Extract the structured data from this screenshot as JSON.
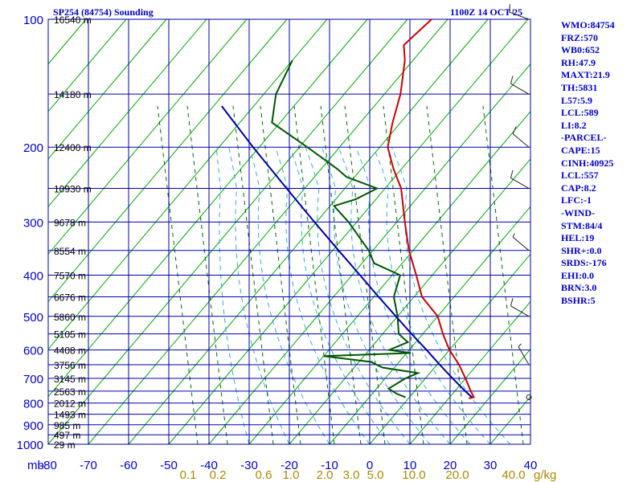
{
  "header": {
    "title": "SP254 (84754) Sounding",
    "time": "1100Z 14 OCT 25"
  },
  "stats": [
    "WMO:84754",
    "FRZ:570",
    "WB0:652",
    "RH:47.9",
    "MAXT:21.9",
    "TH:5831",
    "L57:5.9",
    "LCL:589",
    "LI:8.2",
    "-PARCEL-",
    "CAPE:15",
    "CINH:40925",
    "LCL:557",
    "CAP:8.2",
    "LFC:-1",
    "-WIND-",
    "STM:84/4",
    "HEL:19",
    "SHR+:0.0",
    "SRDS:-176",
    "EHI:0.0",
    "BRN:3.0",
    "BSHR:5"
  ],
  "colors": {
    "grid": "#0000aa",
    "axis_text": "#0000cc",
    "isotherm": "#00aa00",
    "mixing_ratio": "#006600",
    "moist_adiabat": "#33aadd",
    "temperature": "#cc0000",
    "dewpoint": "#005500",
    "parcel": "#0000aa",
    "wind": "#222222",
    "height_text": "#000000",
    "mixing_label": "#aa8800"
  },
  "chart_data": {
    "type": "line",
    "subtype": "skew-t log-p sounding",
    "y_axis": {
      "scale": "log",
      "unit_label": "mb",
      "range": [
        1000,
        100
      ],
      "ticks": [
        100,
        200,
        300,
        400,
        500,
        600,
        700,
        800,
        900,
        1000
      ]
    },
    "x_axis": {
      "range": [
        -80,
        40
      ],
      "ticks": [
        -80,
        -70,
        -60,
        -50,
        -40,
        -30,
        -20,
        -10,
        0,
        10,
        20,
        30,
        40
      ]
    },
    "mixing_ratio_labels": [
      "0.1",
      "0.2",
      "0.6",
      "1.0",
      "2.0",
      "3.0",
      "5.0",
      "10.0",
      "20.0",
      "40.0"
    ],
    "mixing_ratio_unit": "g/kg",
    "height_labels": [
      {
        "p": 100,
        "label": "16540 m"
      },
      {
        "p": 150,
        "label": "14180 m"
      },
      {
        "p": 200,
        "label": "12400 m"
      },
      {
        "p": 250,
        "label": "10930 m"
      },
      {
        "p": 300,
        "label": "9678 m"
      },
      {
        "p": 350,
        "label": "8554 m"
      },
      {
        "p": 400,
        "label": "7570 m"
      },
      {
        "p": 450,
        "label": "6676 m"
      },
      {
        "p": 500,
        "label": "5860 m"
      },
      {
        "p": 550,
        "label": "5105 m"
      },
      {
        "p": 600,
        "label": "4408 m"
      },
      {
        "p": 650,
        "label": "3756 m"
      },
      {
        "p": 700,
        "label": "3145 m"
      },
      {
        "p": 750,
        "label": "2563 m"
      },
      {
        "p": 800,
        "label": "2012 m"
      },
      {
        "p": 850,
        "label": "1493 m"
      },
      {
        "p": 900,
        "label": "985 m"
      },
      {
        "p": 950,
        "label": "497 m"
      },
      {
        "p": 1000,
        "label": "29 m"
      }
    ],
    "series": [
      {
        "name": "temperature",
        "points": [
          {
            "p": 100,
            "t": -74
          },
          {
            "p": 115,
            "t": -75.5
          },
          {
            "p": 125,
            "t": -72
          },
          {
            "p": 150,
            "t": -66
          },
          {
            "p": 175,
            "t": -62
          },
          {
            "p": 200,
            "t": -58
          },
          {
            "p": 225,
            "t": -52
          },
          {
            "p": 250,
            "t": -46
          },
          {
            "p": 300,
            "t": -38
          },
          {
            "p": 350,
            "t": -31
          },
          {
            "p": 400,
            "t": -24
          },
          {
            "p": 450,
            "t": -18
          },
          {
            "p": 500,
            "t": -10
          },
          {
            "p": 550,
            "t": -5
          },
          {
            "p": 600,
            "t": 0
          },
          {
            "p": 650,
            "t": 5.5
          },
          {
            "p": 700,
            "t": 10
          },
          {
            "p": 750,
            "t": 14
          },
          {
            "p": 775,
            "t": 16
          },
          {
            "p": 780,
            "t": 15
          }
        ]
      },
      {
        "name": "dewpoint",
        "points": [
          {
            "p": 125,
            "t": -100
          },
          {
            "p": 150,
            "t": -97
          },
          {
            "p": 175,
            "t": -92
          },
          {
            "p": 200,
            "t": -78
          },
          {
            "p": 225,
            "t": -66
          },
          {
            "p": 235,
            "t": -62
          },
          {
            "p": 250,
            "t": -52
          },
          {
            "p": 265,
            "t": -55
          },
          {
            "p": 275,
            "t": -59
          },
          {
            "p": 300,
            "t": -52
          },
          {
            "p": 350,
            "t": -41
          },
          {
            "p": 375,
            "t": -37
          },
          {
            "p": 400,
            "t": -28
          },
          {
            "p": 450,
            "t": -25
          },
          {
            "p": 500,
            "t": -20
          },
          {
            "p": 550,
            "t": -16
          },
          {
            "p": 575,
            "t": -12
          },
          {
            "p": 600,
            "t": -15
          },
          {
            "p": 610,
            "t": -9
          },
          {
            "p": 620,
            "t": -30
          },
          {
            "p": 640,
            "t": -17
          },
          {
            "p": 660,
            "t": -13
          },
          {
            "p": 680,
            "t": -3
          },
          {
            "p": 700,
            "t": -5
          },
          {
            "p": 740,
            "t": -7
          },
          {
            "p": 760,
            "t": -4
          },
          {
            "p": 775,
            "t": -1
          }
        ]
      },
      {
        "name": "parcel",
        "points": [
          {
            "p": 775,
            "t": 15.5
          },
          {
            "p": 750,
            "t": 12.6
          },
          {
            "p": 700,
            "t": 6.8
          },
          {
            "p": 650,
            "t": 0.7
          },
          {
            "p": 600,
            "t": -5.7
          },
          {
            "p": 550,
            "t": -12.8
          },
          {
            "p": 500,
            "t": -20.4
          },
          {
            "p": 450,
            "t": -28.8
          },
          {
            "p": 400,
            "t": -38
          },
          {
            "p": 350,
            "t": -48.5
          },
          {
            "p": 300,
            "t": -60.5
          },
          {
            "p": 250,
            "t": -74.5
          },
          {
            "p": 200,
            "t": -91.5
          },
          {
            "p": 160,
            "t": -108
          }
        ]
      }
    ],
    "wind_barbs": [
      {
        "p": 100,
        "dir": 290,
        "kt": 15
      },
      {
        "p": 150,
        "dir": 300,
        "kt": 10
      },
      {
        "p": 200,
        "dir": 310,
        "kt": 10
      },
      {
        "p": 250,
        "dir": 300,
        "kt": 10
      },
      {
        "p": 350,
        "dir": 310,
        "kt": 5
      },
      {
        "p": 500,
        "dir": 300,
        "kt": 10
      },
      {
        "p": 650,
        "dir": 330,
        "kt": 5
      },
      {
        "p": 775,
        "dir": 0,
        "kt": 0
      }
    ],
    "grid": true
  }
}
